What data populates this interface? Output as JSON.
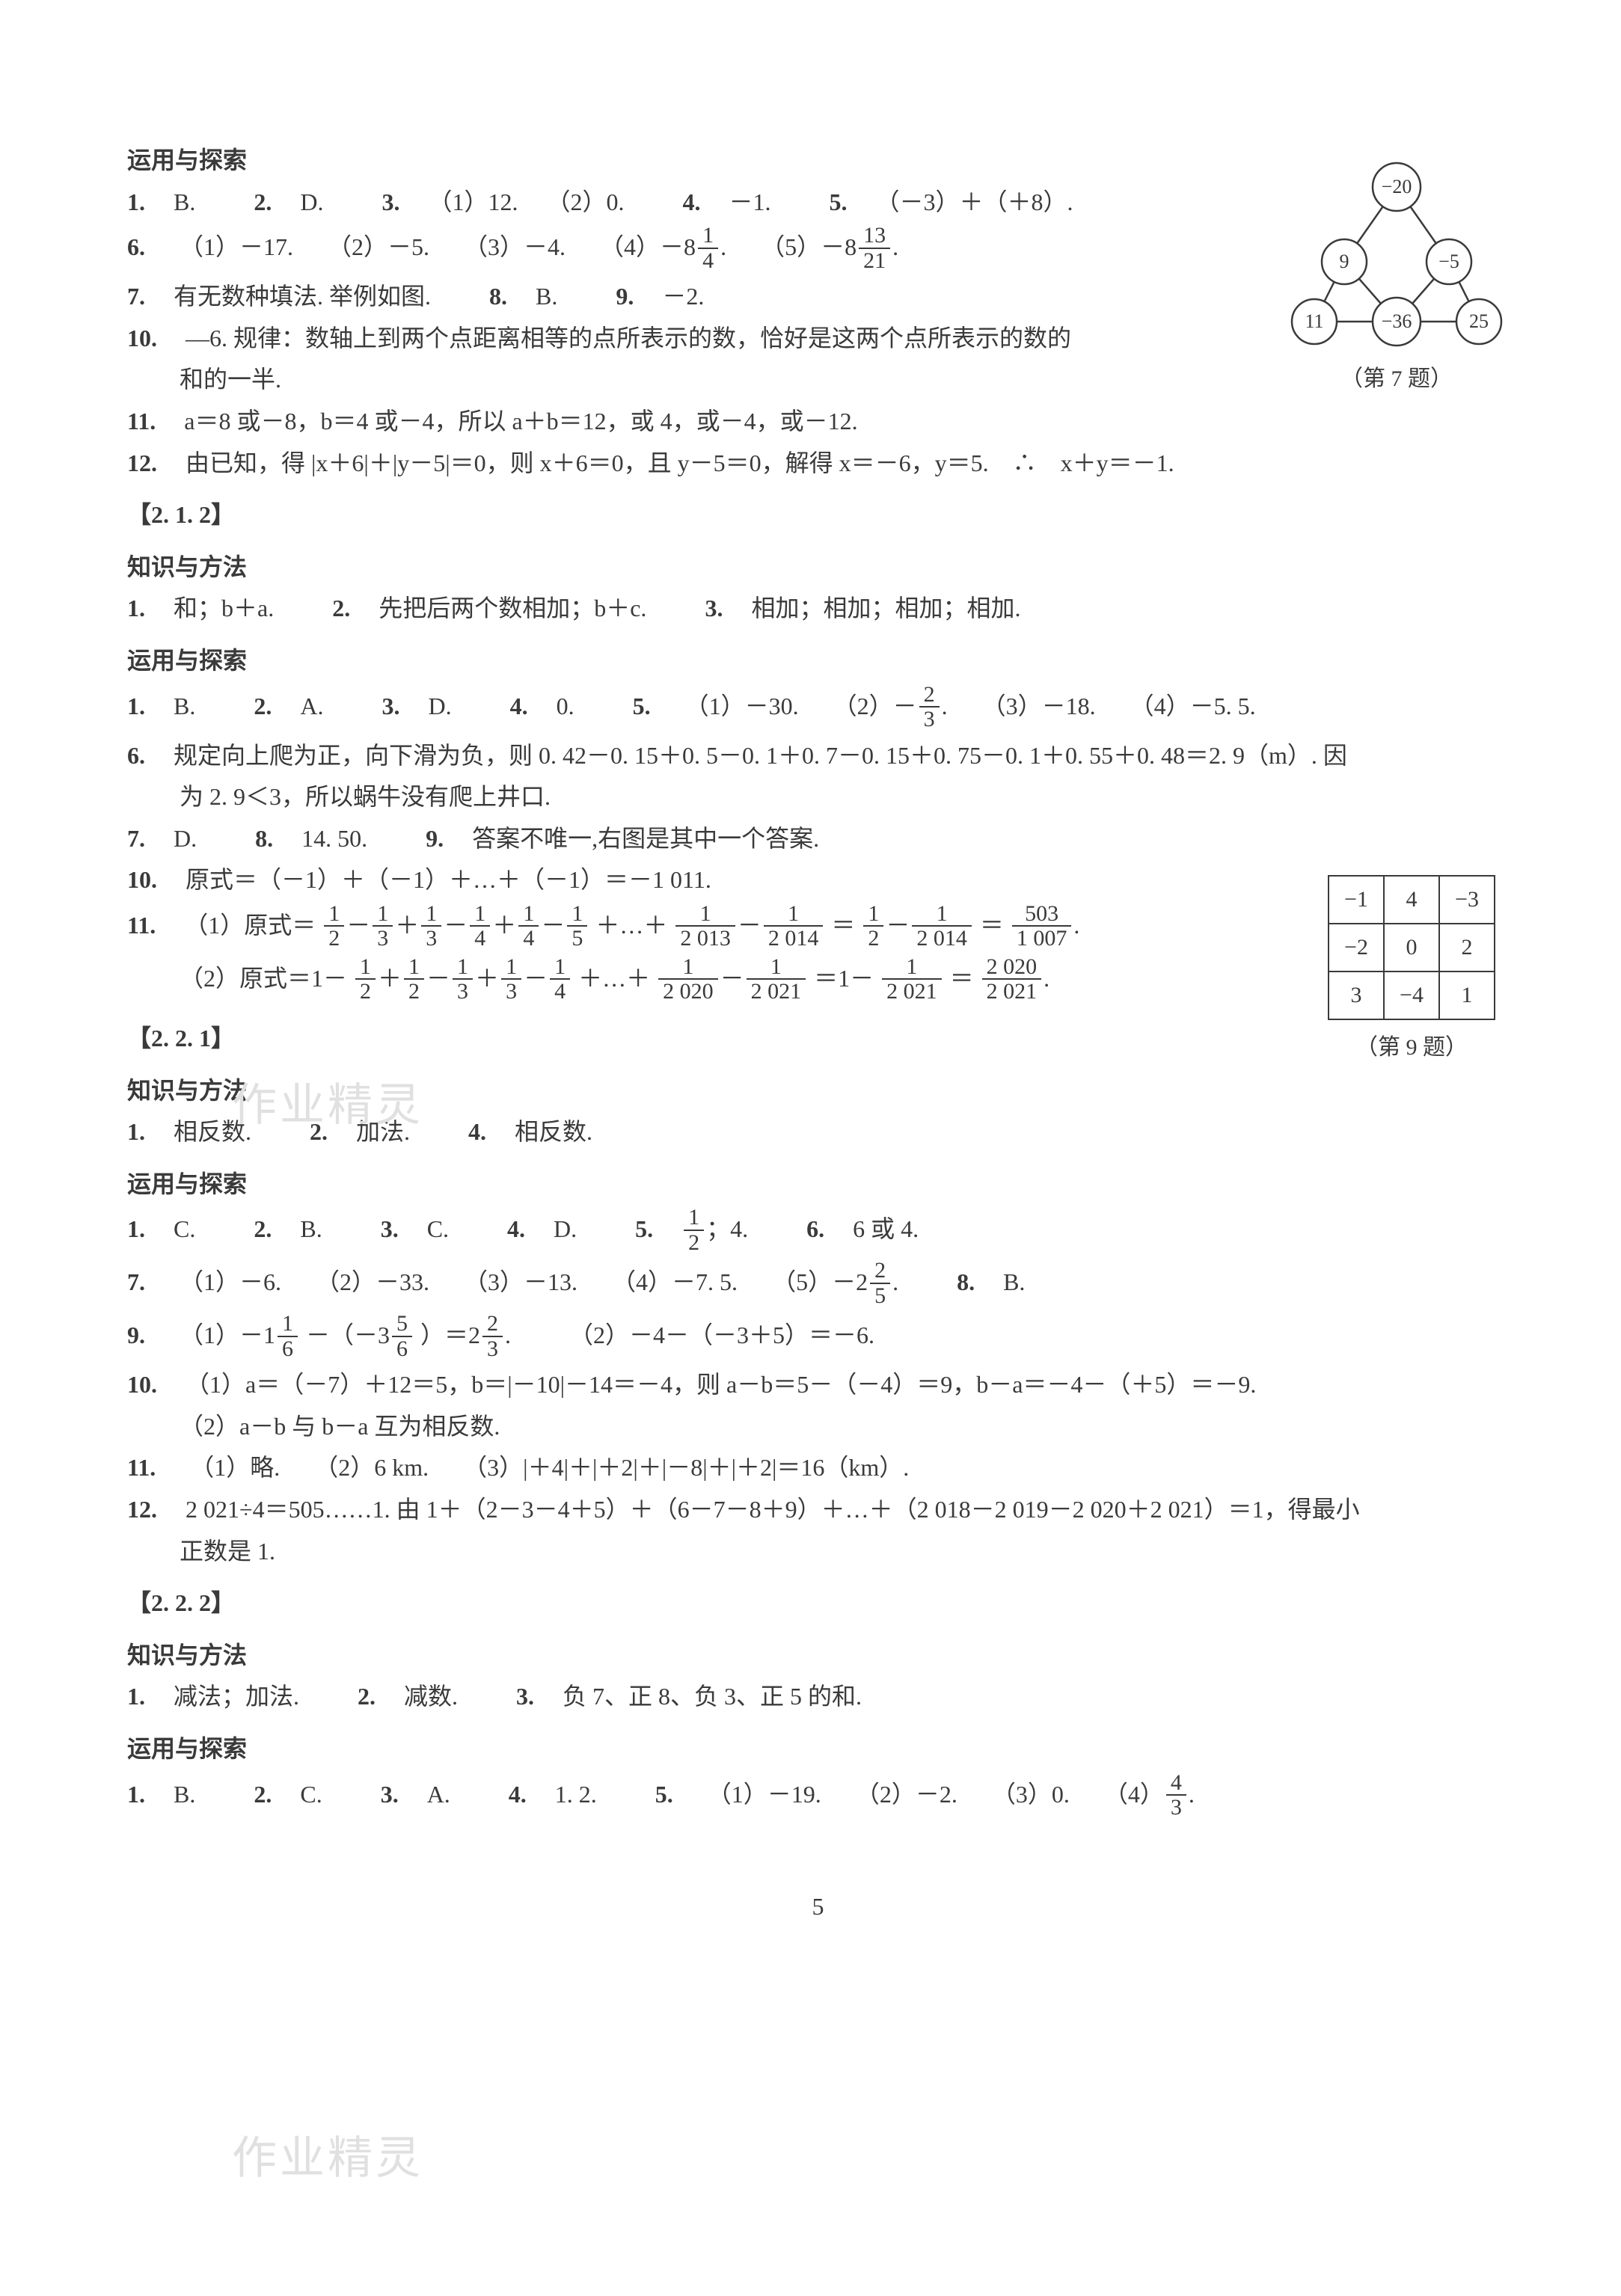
{
  "page_number": "5",
  "watermarks": {
    "w1": "作业精灵",
    "w2": "作业精灵"
  },
  "sec1": {
    "title": "运用与探索",
    "l1": {
      "n1": "1.",
      "a1": "B.",
      "n2": "2.",
      "a2": "D.",
      "n3": "3.",
      "a3a": "（1）12.",
      "a3b": "（2）0.",
      "n4": "4.",
      "a4": "－1.",
      "n5": "5.",
      "a5": "（－3）＋（＋8）."
    },
    "l2": {
      "n": "6.",
      "p1": "（1）－17.",
      "p2": "（2）－5.",
      "p3": "（3）－4.",
      "p4_pre": "（4）－8",
      "p4_num": "1",
      "p4_den": "4",
      "p4_post": ".",
      "p5_pre": "（5）－8",
      "p5_num": "13",
      "p5_den": "21",
      "p5_post": "."
    },
    "l3": {
      "n7": "7.",
      "a7": "有无数种填法. 举例如图.",
      "n8": "8.",
      "a8": "B.",
      "n9": "9.",
      "a9": "－2."
    },
    "l4": {
      "n": "10.",
      "a": "—6. 规律：数轴上到两个点距离相等的点所表示的数，恰好是这两个点所表示的数的",
      "b": "和的一半."
    },
    "l5": {
      "n": "11.",
      "a": "a＝8 或－8，b＝4 或－4，所以 a＋b＝12，或 4，或－4，或－12."
    },
    "l6": {
      "n": "12.",
      "a": "由已知，得 |x＋6|＋|y－5|＝0，则 x＋6＝0，且 y－5＝0，解得 x＝－6，y＝5.　∴　x＋y＝－1."
    },
    "fig7": {
      "caption": "（第 7 题）",
      "top": "−20",
      "midL": "9",
      "midR": "−5",
      "botL": "11",
      "botM": "−36",
      "botR": "25"
    }
  },
  "sec2": {
    "tag": "【2. 1. 2】",
    "kz_title": "知识与方法",
    "kz": {
      "n1": "1.",
      "a1": "和；b＋a.",
      "n2": "2.",
      "a2": "先把后两个数相加；b＋c.",
      "n3": "3.",
      "a3": "相加；相加；相加；相加."
    },
    "yy_title": "运用与探索",
    "l1": {
      "n1": "1.",
      "a1": "B.",
      "n2": "2.",
      "a2": "A.",
      "n3": "3.",
      "a3": "D.",
      "n4": "4.",
      "a4": "0.",
      "n5": "5.",
      "p1": "（1）－30.",
      "p2_pre": "（2）－",
      "p2_num": "2",
      "p2_den": "3",
      "p2_post": ".",
      "p3": "（3）－18.",
      "p4": "（4）－5. 5."
    },
    "l2a": {
      "n": "6.",
      "a": "规定向上爬为正，向下滑为负，则 0. 42－0. 15＋0. 5－0. 1＋0. 7－0. 15＋0. 75－0. 1＋0. 55＋0. 48＝2. 9（m）. 因"
    },
    "l2b": {
      "a": "为 2. 9＜3，所以蜗牛没有爬上井口."
    },
    "l3": {
      "n7": "7.",
      "a7": "D.",
      "n8": "8.",
      "a8": "14. 50.",
      "n9": "9.",
      "a9": "答案不唯一,右图是其中一个答案."
    },
    "l4": {
      "n": "10.",
      "a": "原式＝（－1）＋（－1）＋…＋（－1）＝－1 011."
    },
    "l5": {
      "n": "11.",
      "pre": "（1）原式＝",
      "t": [
        {
          "op": "",
          "num": "1",
          "den": "2"
        },
        {
          "op": "－",
          "num": "1",
          "den": "3"
        },
        {
          "op": "＋",
          "num": "1",
          "den": "3"
        },
        {
          "op": "－",
          "num": "1",
          "den": "4"
        },
        {
          "op": "＋",
          "num": "1",
          "den": "4"
        },
        {
          "op": "－",
          "num": "1",
          "den": "5"
        }
      ],
      "mid1": "＋…＋",
      "t2": [
        {
          "op": "",
          "num": "1",
          "den": "2 013"
        },
        {
          "op": "－",
          "num": "1",
          "den": "2 014"
        }
      ],
      "mid2": "＝",
      "t3": [
        {
          "op": "",
          "num": "1",
          "den": "2"
        },
        {
          "op": "－",
          "num": "1",
          "den": "2 014"
        }
      ],
      "mid3": "＝",
      "res_num": "503",
      "res_den": "1 007",
      "post": "."
    },
    "l6": {
      "pre": "（2）原式＝1－",
      "t": [
        {
          "op": "",
          "num": "1",
          "den": "2"
        },
        {
          "op": "＋",
          "num": "1",
          "den": "2"
        },
        {
          "op": "－",
          "num": "1",
          "den": "3"
        },
        {
          "op": "＋",
          "num": "1",
          "den": "3"
        },
        {
          "op": "－",
          "num": "1",
          "den": "4"
        }
      ],
      "mid1": "＋…＋",
      "t2": [
        {
          "op": "",
          "num": "1",
          "den": "2 020"
        },
        {
          "op": "－",
          "num": "1",
          "den": "2 021"
        }
      ],
      "mid2": "＝1－",
      "t3_num": "1",
      "t3_den": "2 021",
      "mid3": "＝",
      "res_num": "2 020",
      "res_den": "2 021",
      "post": "."
    },
    "fig9": {
      "caption": "（第 9 题）",
      "rows": [
        [
          "−1",
          "4",
          "−3"
        ],
        [
          "−2",
          "0",
          "2"
        ],
        [
          "3",
          "−4",
          "1"
        ]
      ]
    }
  },
  "sec3": {
    "tag": "【2. 2. 1】",
    "kz_title": "知识与方法",
    "kz": {
      "n1": "1.",
      "a1": "相反数.",
      "n2": "2.",
      "a2": "加法.",
      "n4": "4.",
      "a4": "相反数."
    },
    "yy_title": "运用与探索",
    "l1": {
      "n1": "1.",
      "a1": "C.",
      "n2": "2.",
      "a2": "B.",
      "n3": "3.",
      "a3": "C.",
      "n4": "4.",
      "a4": "D.",
      "n5": "5.",
      "a5_num": "1",
      "a5_den": "2",
      "a5_post": "；4.",
      "n6": "6.",
      "a6": "6 或 4."
    },
    "l2": {
      "n": "7.",
      "p1": "（1）－6.",
      "p2": "（2）－33.",
      "p3": "（3）－13.",
      "p4": "（4）－7. 5.",
      "p5_pre": "（5）－2",
      "p5_num": "2",
      "p5_den": "5",
      "p5_post": ".",
      "n8": "8.",
      "a8": "B."
    },
    "l3": {
      "n": "9.",
      "p1_pre": "（1）－1",
      "p1a_num": "1",
      "p1a_den": "6",
      "p1_mid": "－（－3",
      "p1b_num": "5",
      "p1b_den": "6",
      "p1_close": "）＝2",
      "p1c_num": "2",
      "p1c_den": "3",
      "p1_post": ".",
      "p2": "（2）－4－（－3＋5）＝－6."
    },
    "l4a": {
      "n": "10.",
      "a": "（1）a＝（－7）＋12＝5，b＝|－10|－14＝－4，则 a－b＝5－（－4）＝9，b－a＝－4－（＋5）＝－9."
    },
    "l4b": {
      "a": "（2）a－b 与 b－a 互为相反数."
    },
    "l5": {
      "n": "11.",
      "p1": "（1）略.",
      "p2": "（2）6 km.",
      "p3": "（3）|＋4|＋|＋2|＋|－8|＋|＋2|＝16（km）."
    },
    "l6a": {
      "n": "12.",
      "a": "2 021÷4＝505……1. 由 1＋（2－3－4＋5）＋（6－7－8＋9）＋…＋（2 018－2 019－2 020＋2 021）＝1，得最小"
    },
    "l6b": {
      "a": "正数是 1."
    }
  },
  "sec4": {
    "tag": "【2. 2. 2】",
    "kz_title": "知识与方法",
    "kz": {
      "n1": "1.",
      "a1": "减法；加法.",
      "n2": "2.",
      "a2": "减数.",
      "n3": "3.",
      "a3": "负 7、正 8、负 3、正 5 的和."
    },
    "yy_title": "运用与探索",
    "l1": {
      "n1": "1.",
      "a1": "B.",
      "n2": "2.",
      "a2": "C.",
      "n3": "3.",
      "a3": "A.",
      "n4": "4.",
      "a4": "1. 2.",
      "n5": "5.",
      "p1": "（1）－19.",
      "p2": "（2）－2.",
      "p3": "（3）0.",
      "p4_pre": "（4）",
      "p4_num": "4",
      "p4_den": "3",
      "p4_post": "."
    }
  }
}
